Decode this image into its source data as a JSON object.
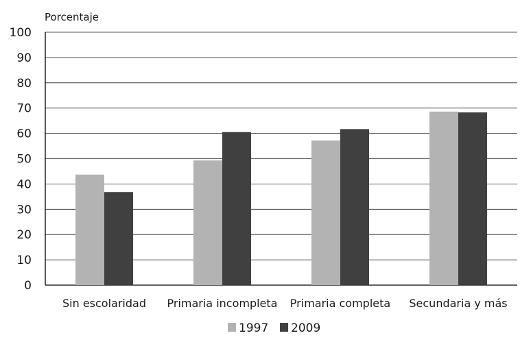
{
  "chart_data": {
    "type": "bar",
    "ylabel": "Porcentaje",
    "xlabel": "",
    "title": "",
    "ylim": [
      0,
      100
    ],
    "yticks": [
      0,
      10,
      20,
      30,
      40,
      50,
      60,
      70,
      80,
      90,
      100
    ],
    "grid": true,
    "legend_position": "bottom",
    "categories": [
      "Sin escolaridad",
      "Primaria incompleta",
      "Primaria completa",
      "Secundaria y más"
    ],
    "series": [
      {
        "name": "1997",
        "color": "#b3b3b3",
        "values": [
          43.7,
          49.3,
          57.2,
          68.6
        ]
      },
      {
        "name": "2009",
        "color": "#404040",
        "values": [
          36.8,
          60.5,
          61.7,
          68.3
        ]
      }
    ]
  }
}
